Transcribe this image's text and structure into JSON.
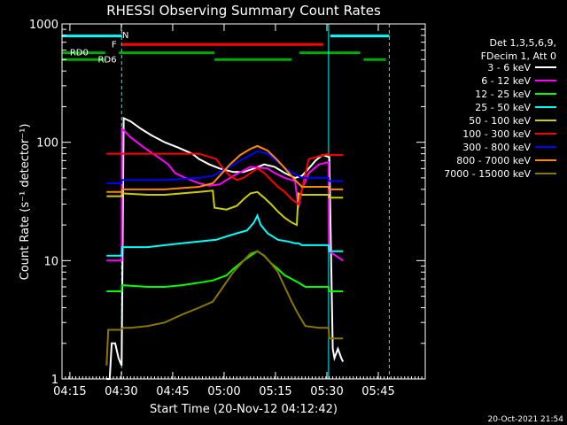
{
  "chart_data": {
    "type": "line",
    "title": "RHESSI Observing Summary Count Rates",
    "xlabel": "Start Time (20-Nov-12 04:12:42)",
    "ylabel": "Count Rate (s⁻¹ detector⁻¹)",
    "ylog": true,
    "xlim_min": [
      0,
      106
    ],
    "ylim": [
      1,
      1000
    ],
    "x_ticks": [
      {
        "m": 2.3,
        "label": "04:15"
      },
      {
        "m": 17.3,
        "label": "04:30"
      },
      {
        "m": 32.3,
        "label": "04:45"
      },
      {
        "m": 47.3,
        "label": "05:00"
      },
      {
        "m": 62.3,
        "label": "05:15"
      },
      {
        "m": 77.3,
        "label": "05:30"
      },
      {
        "m": 92.3,
        "label": "05:45"
      }
    ],
    "y_ticks": [
      {
        "v": 1,
        "label": "1"
      },
      {
        "v": 10,
        "label": "10"
      },
      {
        "v": 100,
        "label": "100"
      },
      {
        "v": 1000,
        "label": "1000"
      }
    ],
    "legend": {
      "header": [
        "Det 1,3,5,6,9,",
        "FDecim 1, Att 0"
      ],
      "position": "right"
    },
    "flags": [
      {
        "label": "N",
        "color": "#00ffff",
        "label_m": 18.5,
        "label_v": 810,
        "segments": [
          [
            0,
            17.5,
            790
          ],
          [
            78.3,
            95.5,
            790
          ]
        ]
      },
      {
        "label": "F",
        "color": "#ff0000",
        "label_m": 15.2,
        "label_v": 680,
        "segments": [
          [
            17.6,
            76.2,
            670
          ]
        ]
      },
      {
        "label": "RD0",
        "color": "#00aa00",
        "label_m": 5.0,
        "label_v": 580,
        "segments": [
          [
            0,
            12.6,
            570
          ],
          [
            16.6,
            44.5,
            570
          ],
          [
            69.3,
            87.0,
            570
          ]
        ]
      },
      {
        "label": "RD6",
        "color": "#00aa00",
        "label_m": 13.2,
        "label_v": 505,
        "segments": [
          [
            0,
            12.5,
            500
          ],
          [
            44.5,
            67.0,
            500
          ],
          [
            88.0,
            94.5,
            500
          ]
        ]
      }
    ],
    "vlines": [
      {
        "m": 17.4,
        "color": "#00ffff",
        "dashed": true
      },
      {
        "m": 77.8,
        "color": "#00ffff",
        "dashed": false
      },
      {
        "m": 95.5,
        "color": "#00ffff",
        "dashed": true
      }
    ],
    "series": [
      {
        "name": "3 - 6 keV",
        "color": "#ffffff",
        "x": [
          13.0,
          13.9,
          14.5,
          15.5,
          16.5,
          17.4,
          18.0,
          20.0,
          23.0,
          26.0,
          30.0,
          34.0,
          38.0,
          40.0,
          43.0,
          46.0,
          48.0,
          50.0,
          53.0,
          56.0,
          59.0,
          62.0,
          65.0,
          68.0,
          70.0,
          72.0,
          74.0,
          76.0,
          78.0,
          79.0,
          79.5,
          80.5,
          81.5,
          82.0
        ],
        "y": [
          1,
          1,
          2,
          2,
          1.5,
          1.3,
          160,
          150,
          130,
          115,
          100,
          90,
          80,
          72,
          65,
          60,
          58,
          56,
          56,
          60,
          65,
          62,
          55,
          50,
          52,
          60,
          70,
          78,
          75,
          1.8,
          1.5,
          1.8,
          1.5,
          1.4
        ]
      },
      {
        "name": "6 - 12 keV",
        "color": "#ff00ff",
        "x": [
          13.0,
          17.4,
          17.5,
          20.0,
          24.0,
          28.0,
          31.0,
          33.0,
          36.0,
          40.0,
          43.0,
          46.0,
          48.0,
          50.0,
          55.0,
          60.0,
          62.0,
          65.0,
          68.0,
          69.0,
          70.0,
          72.0,
          75.0,
          77.8,
          77.9,
          82.0
        ],
        "y": [
          10,
          10,
          130,
          110,
          90,
          75,
          65,
          55,
          50,
          45,
          43,
          44,
          48,
          52,
          62,
          60,
          55,
          50,
          47,
          28,
          40,
          55,
          65,
          68,
          12,
          10
        ]
      },
      {
        "name": "12 - 25 keV",
        "color": "#00ff00",
        "x": [
          13.0,
          17.4,
          17.5,
          25.0,
          30.0,
          35.0,
          40.0,
          44.0,
          48.0,
          50.0,
          53.0,
          55.0,
          57.0,
          59.0,
          61.0,
          63.0,
          65.0,
          67.0,
          69.0,
          71.0,
          77.8,
          77.9,
          82.0
        ],
        "y": [
          5.5,
          5.5,
          6.2,
          6.0,
          6.0,
          6.2,
          6.5,
          6.8,
          7.5,
          8.5,
          10,
          11,
          12,
          11,
          9.5,
          8.5,
          7.5,
          7,
          6.5,
          6,
          6,
          5.5,
          5.5
        ]
      },
      {
        "name": "25 - 50 keV",
        "color": "#00ffff",
        "x": [
          13.0,
          17.4,
          17.5,
          25.0,
          30.0,
          35.0,
          40.0,
          45.0,
          48.0,
          51.0,
          54.0,
          56.0,
          57.0,
          58.0,
          60.0,
          63.0,
          66.0,
          68.0,
          69.0,
          70.0,
          77.8,
          77.9,
          82.0
        ],
        "y": [
          11,
          11,
          13,
          13,
          13.5,
          14,
          14.5,
          15,
          16,
          17,
          18,
          21,
          24,
          20,
          17,
          15,
          14.5,
          14,
          14,
          13.5,
          13.5,
          12,
          12
        ]
      },
      {
        "name": "50 - 100 keV",
        "color": "#cccc00",
        "x": [
          13.0,
          17.4,
          17.5,
          25.0,
          30.0,
          35.0,
          40.0,
          44.0,
          44.5,
          48.0,
          51.0,
          53.0,
          55.0,
          57.0,
          59.0,
          61.0,
          63.0,
          65.0,
          67.0,
          68.5,
          69.0,
          70.0,
          77.8,
          77.9,
          82.0
        ],
        "y": [
          35,
          35,
          37,
          36,
          36,
          37,
          38,
          39,
          28,
          27,
          29,
          33,
          37,
          38,
          34,
          30,
          26,
          23,
          21,
          20,
          37,
          36,
          36,
          34,
          34
        ]
      },
      {
        "name": "100 - 300 keV",
        "color": "#ff0000",
        "x": [
          13.0,
          17.4,
          17.5,
          25.0,
          30.0,
          35.0,
          40.0,
          45.0,
          47.0,
          49.0,
          51.0,
          53.0,
          55.0,
          57.0,
          59.0,
          61.0,
          63.0,
          65.0,
          67.0,
          69.0,
          72.0,
          77.8,
          77.9,
          82.0
        ],
        "y": [
          80,
          80,
          80,
          80,
          80,
          80,
          80,
          72,
          60,
          52,
          48,
          50,
          55,
          60,
          55,
          48,
          42,
          38,
          33,
          30,
          72,
          80,
          78,
          78
        ]
      },
      {
        "name": "300 - 800 keV",
        "color": "#0000ff",
        "x": [
          13.0,
          17.4,
          17.5,
          25.0,
          30.0,
          35.0,
          40.0,
          44.0,
          46.0,
          49.0,
          52.0,
          55.0,
          57.0,
          60.0,
          63.0,
          66.0,
          68.0,
          70.0,
          77.8,
          77.9,
          82.0
        ],
        "y": [
          45,
          45,
          48,
          48,
          48,
          49,
          50,
          52,
          56,
          62,
          70,
          78,
          84,
          80,
          68,
          58,
          54,
          50,
          50,
          47,
          47
        ]
      },
      {
        "name": "800 - 7000 keV",
        "color": "#ff8800",
        "x": [
          13.0,
          17.4,
          17.5,
          25.0,
          30.0,
          35.0,
          40.0,
          44.0,
          46.0,
          49.0,
          52.0,
          55.0,
          57.0,
          60.0,
          63.0,
          66.0,
          68.0,
          70.0,
          77.8,
          77.9,
          82.0
        ],
        "y": [
          38,
          38,
          40,
          40,
          40,
          41,
          42,
          45,
          52,
          65,
          78,
          88,
          93,
          85,
          70,
          56,
          48,
          42,
          42,
          40,
          40
        ]
      },
      {
        "name": "7000 - 15000 keV",
        "color": "#887700",
        "x": [
          13.0,
          13.5,
          17.0,
          18.0,
          20.0,
          25.0,
          30.0,
          35.0,
          40.0,
          44.0,
          47.0,
          50.0,
          53.0,
          55.0,
          57.0,
          59.0,
          61.0,
          63.0,
          65.0,
          67.0,
          69.0,
          71.0,
          75.0,
          77.8,
          78.0,
          82.0
        ],
        "y": [
          1.3,
          2.6,
          2.6,
          2.7,
          2.7,
          2.8,
          3.0,
          3.5,
          4.0,
          4.5,
          6.0,
          8.0,
          10,
          11.5,
          12,
          11,
          9.5,
          8,
          6,
          4.5,
          3.5,
          2.8,
          2.7,
          2.7,
          2.2,
          2.2
        ]
      }
    ]
  },
  "timestamp": "20-Oct-2021 21:54"
}
